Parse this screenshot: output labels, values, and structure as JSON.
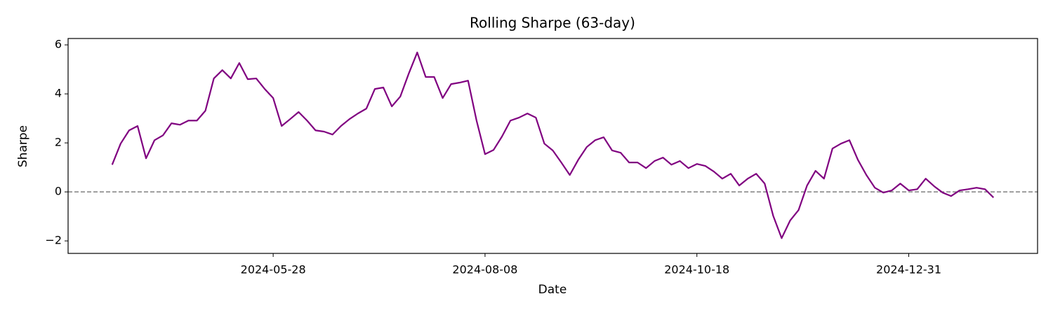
{
  "chart_data": {
    "type": "line",
    "title": "Rolling Sharpe (63-day)",
    "xlabel": "Date",
    "ylabel": "Sharpe",
    "categories": [
      null,
      null,
      null,
      null,
      null,
      null,
      null,
      null,
      null,
      null,
      null,
      null,
      null,
      null,
      null,
      null,
      null,
      null,
      null,
      "2024-05-28",
      null,
      null,
      null,
      null,
      null,
      null,
      null,
      null,
      null,
      null,
      null,
      null,
      null,
      null,
      null,
      null,
      null,
      null,
      null,
      null,
      null,
      null,
      null,
      null,
      "2024-08-08",
      null,
      null,
      null,
      null,
      null,
      null,
      null,
      null,
      null,
      null,
      null,
      null,
      null,
      null,
      null,
      null,
      null,
      null,
      null,
      null,
      null,
      null,
      null,
      null,
      "2024-10-18",
      null,
      null,
      null,
      null,
      null,
      null,
      null,
      null,
      null,
      null,
      null,
      null,
      null,
      null,
      null,
      null,
      null,
      null,
      null,
      null,
      null,
      null,
      null,
      null,
      "2024-12-31",
      null,
      null,
      null,
      null,
      null,
      null,
      null,
      null,
      null,
      null
    ],
    "series": [
      {
        "color": "#800080",
        "values": [
          1.11,
          1.97,
          2.51,
          2.69,
          1.37,
          2.11,
          2.31,
          2.8,
          2.74,
          2.91,
          2.91,
          3.31,
          4.63,
          4.97,
          4.63,
          5.26,
          4.6,
          4.63,
          4.2,
          3.83,
          2.69,
          2.97,
          3.26,
          2.91,
          2.51,
          2.46,
          2.34,
          2.69,
          2.97,
          3.2,
          3.4,
          4.2,
          4.26,
          3.49,
          3.89,
          4.83,
          5.69,
          4.69,
          4.69,
          3.83,
          4.4,
          4.46,
          4.54,
          2.91,
          1.54,
          1.71,
          2.26,
          2.91,
          3.03,
          3.2,
          3.03,
          1.97,
          1.69,
          1.2,
          0.69,
          1.31,
          1.83,
          2.11,
          2.23,
          1.69,
          1.6,
          1.2,
          1.2,
          0.97,
          1.26,
          1.4,
          1.11,
          1.26,
          0.97,
          1.14,
          1.06,
          0.83,
          0.54,
          0.74,
          0.26,
          0.54,
          0.74,
          0.34,
          -0.97,
          -1.89,
          -1.17,
          -0.74,
          0.26,
          0.86,
          0.54,
          1.77,
          1.97,
          2.11,
          1.31,
          0.69,
          0.17,
          -0.03,
          0.06,
          0.34,
          0.06,
          0.11,
          0.54,
          0.23,
          -0.03,
          -0.17,
          0.06,
          0.11,
          0.17,
          0.11,
          -0.23
        ]
      }
    ],
    "ylim": [
      -2.51,
      6.26
    ],
    "yticks": [
      {
        "value": -2,
        "label": "−2"
      },
      0,
      2,
      4,
      6
    ],
    "reference_line": 0,
    "reference_color": "#808080"
  }
}
